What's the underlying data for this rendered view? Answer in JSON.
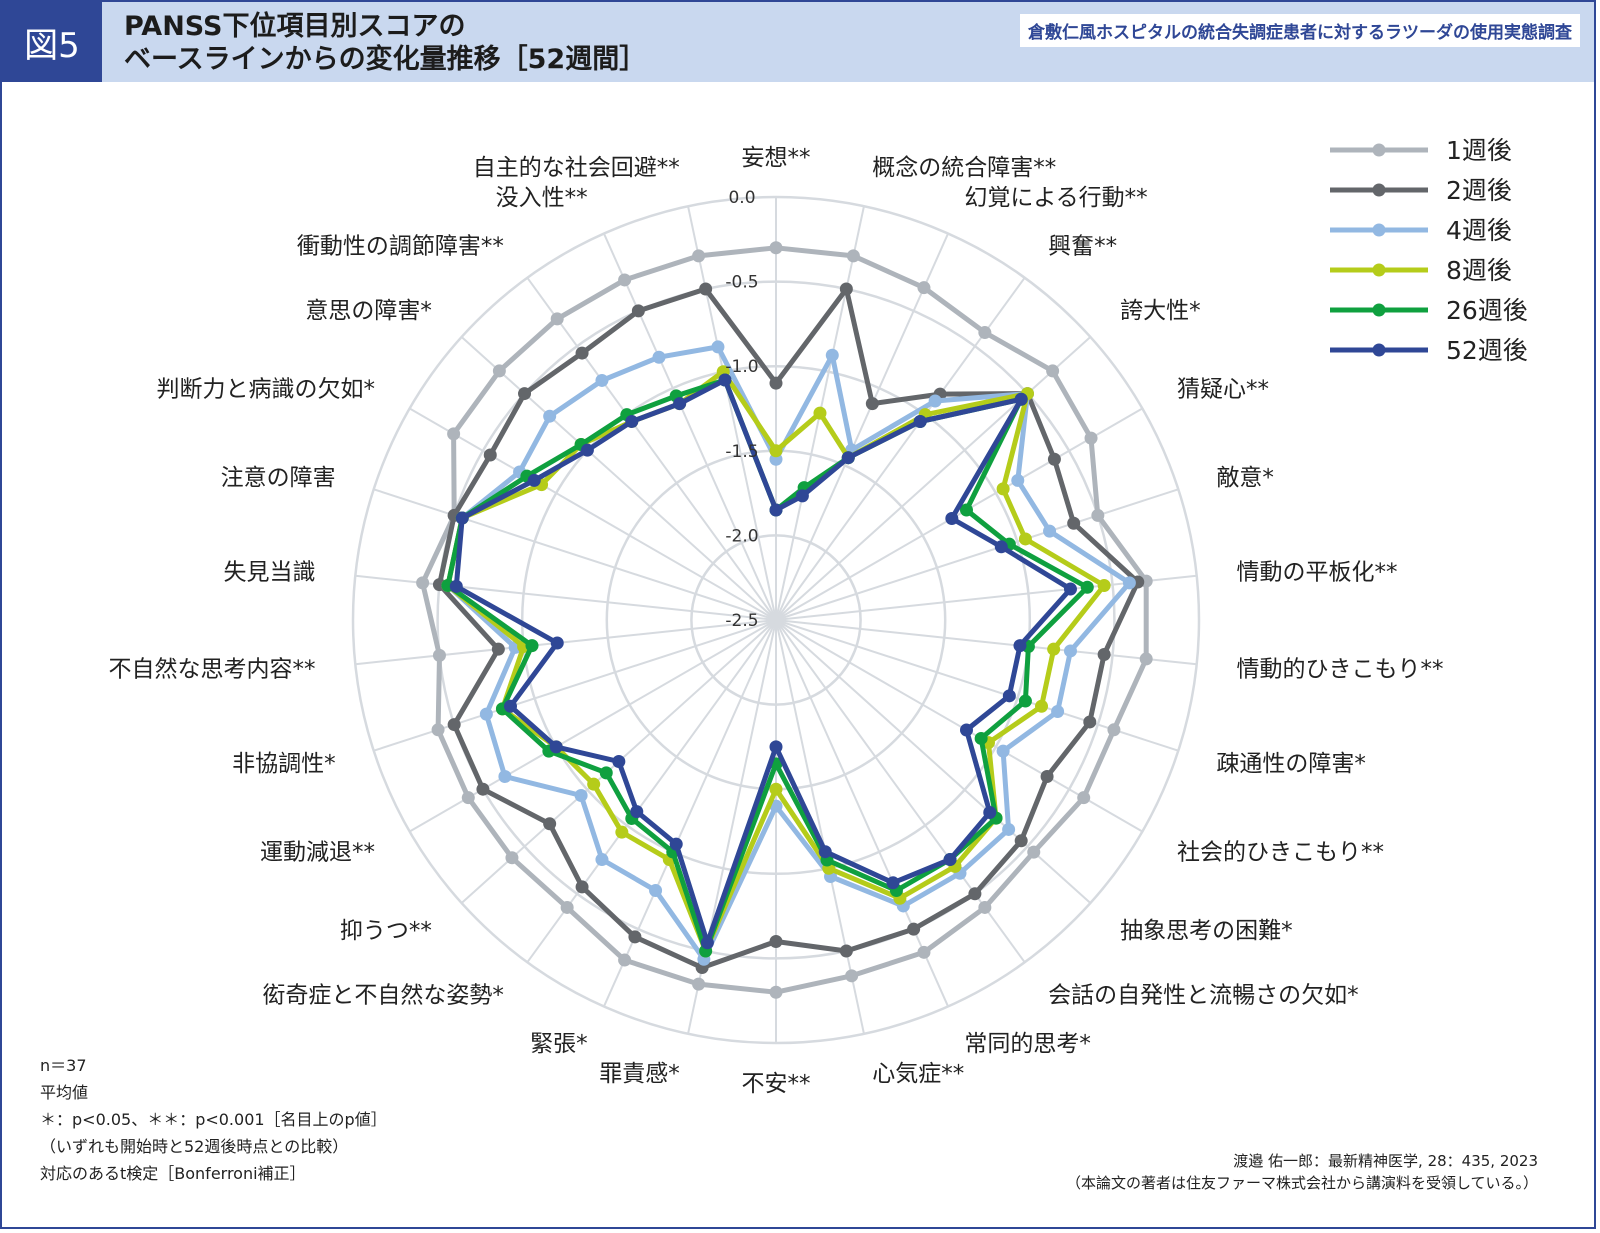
{
  "header": {
    "figure_label": "図5",
    "title_line1": "PANSS下位項目別スコアの",
    "title_line2": "ベースラインからの変化量推移［52週間］",
    "subtitle": "倉敷仁風ホスピタルの統合失調症患者に対するラツーダの使用実態調査"
  },
  "notes": {
    "n": "n＝37",
    "mean": "平均値",
    "sig": "＊：p<0.05、＊＊：p<0.001［名目上のp値］",
    "comparison": "（いずれも開始時と52週後時点との比較）",
    "test": "対応のあるt検定［Bonferroni補正］"
  },
  "source": {
    "line1": "渡邉 佑一郎：最新精神医学, 28：435, 2023",
    "line2": "（本論文の著者は住友ファーマ株式会社から講演料を受領している。）"
  },
  "colors": {
    "frame": "#2f4796",
    "header_bg": "#c9d8ef",
    "grid": "#d6dadf"
  },
  "chart_data": {
    "type": "radar",
    "axis_range": [
      -2.5,
      0.0
    ],
    "ticks": [
      0.0,
      -0.5,
      -1.0,
      -1.5,
      -2.0,
      -2.5
    ],
    "tick_labels": [
      "0.0",
      "-0.5",
      "-1.0",
      "-1.5",
      "-2.0",
      "-2.5"
    ],
    "legend_position": "top-right",
    "categories": [
      "妄想**",
      "概念の統合障害**",
      "幻覚による行動**",
      "興奮**",
      "誇大性*",
      "猜疑心**",
      "敵意*",
      "情動の平板化**",
      "情動的ひきこもり**",
      "疎通性の障害*",
      "社会的ひきこもり**",
      "抽象思考の困難*",
      "会話の自発性と流暢さの欠如*",
      "常同的思考*",
      "心気症**",
      "不安**",
      "罪責感*",
      "緊張*",
      "衒奇症と不自然な姿勢*",
      "抑うつ**",
      "運動減退**",
      "非協調性*",
      "不自然な思考内容**",
      "失見当識",
      "注意の障害",
      "判断力と病識の欠如*",
      "意思の障害*",
      "衝動性の調節障害**",
      "没入性**",
      "自主的な社会回避**"
    ],
    "series": [
      {
        "name": "1週後",
        "color": "#aeb4bb",
        "values": [
          -0.3,
          -0.3,
          -0.35,
          -0.4,
          -0.3,
          -0.35,
          -0.5,
          -0.3,
          -0.3,
          -0.4,
          -0.4,
          -0.45,
          -0.4,
          -0.35,
          -0.35,
          -0.3,
          -0.3,
          -0.3,
          -0.4,
          -0.4,
          -0.4,
          -0.4,
          -0.5,
          -0.4,
          -0.5,
          -0.3,
          -0.3,
          -0.3,
          -0.3,
          -0.3
        ]
      },
      {
        "name": "2週後",
        "color": "#63666a",
        "values": [
          -1.1,
          -0.5,
          -1.1,
          -0.85,
          -0.5,
          -0.6,
          -0.65,
          -0.35,
          -0.55,
          -0.55,
          -0.65,
          -0.55,
          -0.5,
          -0.5,
          -0.5,
          -0.6,
          -0.4,
          -0.45,
          -0.55,
          -0.7,
          -0.5,
          -0.5,
          -0.85,
          -0.5,
          -0.5,
          -0.55,
          -0.5,
          -0.55,
          -0.5,
          -0.5
        ]
      },
      {
        "name": "4週後",
        "color": "#92b8e2",
        "values": [
          -1.55,
          -0.9,
          -1.4,
          -0.9,
          -0.5,
          -0.85,
          -0.8,
          -0.4,
          -0.75,
          -0.75,
          -0.95,
          -0.65,
          -0.65,
          -0.65,
          -0.95,
          -1.4,
          -0.45,
          -0.75,
          -0.75,
          -0.95,
          -0.65,
          -0.7,
          -0.95,
          -0.55,
          -0.55,
          -0.75,
          -0.7,
          -0.75,
          -0.8,
          -0.85
        ]
      },
      {
        "name": "8週後",
        "color": "#b5cc1a",
        "values": [
          -1.5,
          -1.25,
          -1.45,
          -1.0,
          -0.5,
          -0.95,
          -0.95,
          -0.55,
          -0.85,
          -0.85,
          -1.05,
          -0.75,
          -0.7,
          -0.7,
          -1.0,
          -1.5,
          -0.5,
          -0.95,
          -0.95,
          -1.05,
          -1.0,
          -0.8,
          -1.0,
          -0.55,
          -0.55,
          -0.9,
          -0.95,
          -1.05,
          -1.1,
          -1.0
        ]
      },
      {
        "name": "26週後",
        "color": "#0fa03f",
        "values": [
          -1.85,
          -1.7,
          -1.45,
          -1.05,
          -0.55,
          -1.2,
          -1.05,
          -0.65,
          -1.0,
          -0.95,
          -1.1,
          -0.75,
          -0.75,
          -0.75,
          -1.05,
          -1.65,
          -0.5,
          -1.0,
          -1.05,
          -1.15,
          -0.95,
          -0.8,
          -1.05,
          -0.55,
          -0.55,
          -0.8,
          -0.95,
          -1.0,
          -1.05,
          -1.05
        ]
      },
      {
        "name": "52週後",
        "color": "#2f4796",
        "values": [
          -1.85,
          -1.75,
          -1.45,
          -1.05,
          -0.55,
          -1.3,
          -1.1,
          -0.75,
          -1.05,
          -1.05,
          -1.2,
          -0.8,
          -0.75,
          -0.8,
          -1.1,
          -1.75,
          -0.55,
          -1.05,
          -1.1,
          -1.25,
          -1.0,
          -0.85,
          -1.2,
          -0.6,
          -0.55,
          -0.85,
          -1.0,
          -1.05,
          -1.1,
          -1.05
        ]
      }
    ]
  }
}
